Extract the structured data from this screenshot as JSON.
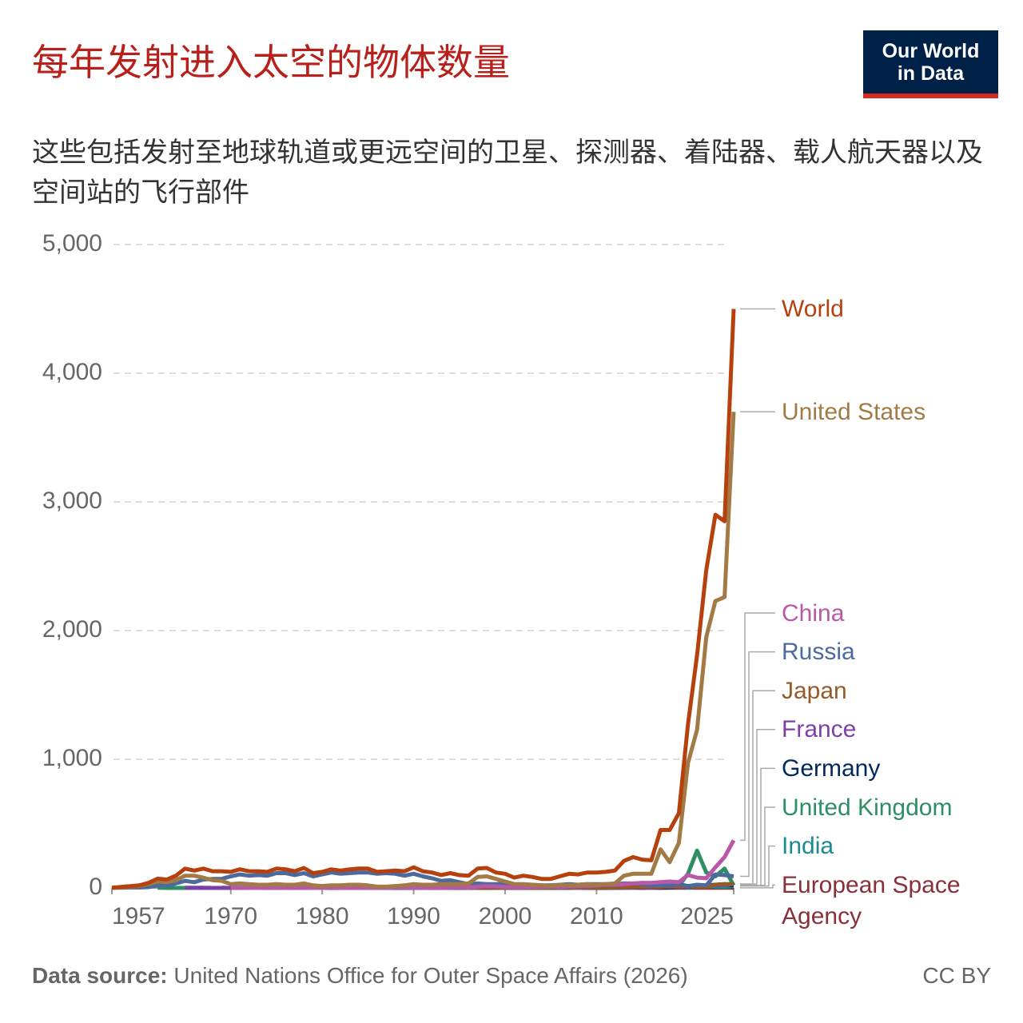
{
  "chart_data": {
    "type": "line",
    "title": "每年发射进入太空的物体数量",
    "subtitle": "这些包括发射至地球轨道或更远空间的卫星、探测器、着陆器、载人航天器以及空间站的飞行部件",
    "logo": "Our World in Data",
    "source_label": "Data source:",
    "source": "United Nations Office for Outer Space Affairs (2026)",
    "license": "CC BY",
    "x": [
      1957,
      1958,
      1959,
      1960,
      1961,
      1962,
      1963,
      1964,
      1965,
      1966,
      1967,
      1968,
      1969,
      1970,
      1971,
      1972,
      1973,
      1974,
      1975,
      1976,
      1977,
      1978,
      1979,
      1980,
      1981,
      1982,
      1983,
      1984,
      1985,
      1986,
      1987,
      1988,
      1989,
      1990,
      1991,
      1992,
      1993,
      1994,
      1995,
      1996,
      1997,
      1998,
      1999,
      2000,
      2001,
      2002,
      2003,
      2004,
      2005,
      2006,
      2007,
      2008,
      2009,
      2010,
      2011,
      2012,
      2013,
      2014,
      2015,
      2016,
      2017,
      2018,
      2019,
      2020,
      2021,
      2022,
      2023,
      2024,
      2025
    ],
    "xlim": [
      1957,
      2025
    ],
    "xticks": [
      1957,
      1970,
      1980,
      1990,
      2000,
      2010,
      2025
    ],
    "ylim": [
      0,
      5000
    ],
    "yticks": [
      0,
      {
        "value": 1000,
        "label": "1,000"
      },
      {
        "value": 2000,
        "label": "2,000"
      },
      {
        "value": 3000,
        "label": "3,000"
      },
      {
        "value": 4000,
        "label": "4,000"
      },
      {
        "value": 5000,
        "label": "5,000"
      }
    ],
    "grid": true,
    "series": [
      {
        "name": "World",
        "color": "#b7410e",
        "values": [
          2,
          8,
          14,
          20,
          40,
          72,
          65,
          95,
          150,
          135,
          150,
          130,
          130,
          125,
          145,
          130,
          130,
          125,
          150,
          145,
          130,
          155,
          115,
          125,
          145,
          135,
          145,
          150,
          150,
          125,
          130,
          135,
          130,
          160,
          130,
          120,
          100,
          115,
          100,
          95,
          150,
          155,
          120,
          110,
          80,
          95,
          85,
          70,
          70,
          90,
          110,
          105,
          120,
          120,
          125,
          135,
          210,
          240,
          220,
          215,
          450,
          450,
          580,
          1270,
          1810,
          2470,
          2900,
          2850,
          4500
        ]
      },
      {
        "name": "United States",
        "color": "#a17a46",
        "values": [
          0,
          5,
          10,
          15,
          30,
          50,
          45,
          60,
          95,
          95,
          80,
          60,
          55,
          30,
          35,
          30,
          25,
          25,
          30,
          25,
          25,
          35,
          20,
          15,
          20,
          20,
          25,
          25,
          20,
          10,
          10,
          15,
          20,
          30,
          25,
          25,
          30,
          30,
          30,
          35,
          85,
          90,
          70,
          50,
          30,
          30,
          25,
          20,
          15,
          25,
          20,
          25,
          30,
          25,
          30,
          35,
          95,
          110,
          110,
          110,
          300,
          200,
          350,
          970,
          1230,
          1950,
          2230,
          2260,
          3700
        ]
      },
      {
        "name": "China",
        "color": "#b957a8",
        "values": [
          null,
          null,
          null,
          null,
          null,
          null,
          null,
          null,
          null,
          null,
          null,
          null,
          null,
          1,
          1,
          0,
          0,
          1,
          3,
          0,
          1,
          1,
          0,
          0,
          3,
          1,
          1,
          2,
          2,
          1,
          2,
          3,
          4,
          3,
          2,
          3,
          1,
          2,
          5,
          3,
          10,
          15,
          12,
          8,
          4,
          5,
          8,
          8,
          10,
          8,
          12,
          15,
          15,
          20,
          25,
          25,
          30,
          35,
          40,
          40,
          45,
          50,
          45,
          100,
          80,
          75,
          160,
          240,
          370
        ]
      },
      {
        "name": "Russia",
        "color": "#4c6a9c",
        "values": [
          2,
          1,
          3,
          3,
          6,
          20,
          20,
          35,
          55,
          45,
          65,
          70,
          70,
          90,
          105,
          95,
          100,
          95,
          115,
          115,
          100,
          115,
          90,
          105,
          120,
          110,
          115,
          120,
          120,
          110,
          115,
          110,
          95,
          110,
          90,
          75,
          55,
          60,
          45,
          30,
          35,
          30,
          30,
          35,
          25,
          25,
          25,
          20,
          20,
          25,
          30,
          25,
          30,
          30,
          30,
          30,
          35,
          35,
          30,
          20,
          20,
          20,
          30,
          15,
          25,
          20,
          105,
          100,
          90
        ]
      },
      {
        "name": "Japan",
        "color": "#955a27",
        "values": [
          null,
          null,
          null,
          null,
          null,
          null,
          null,
          null,
          null,
          null,
          null,
          null,
          null,
          1,
          1,
          0,
          0,
          0,
          1,
          0,
          1,
          2,
          2,
          2,
          3,
          3,
          2,
          3,
          2,
          2,
          3,
          3,
          2,
          3,
          2,
          3,
          1,
          3,
          5,
          1,
          2,
          3,
          2,
          2,
          3,
          3,
          2,
          2,
          3,
          5,
          4,
          5,
          3,
          3,
          5,
          5,
          6,
          7,
          10,
          12,
          8,
          15,
          12,
          15,
          10,
          8,
          25,
          30,
          30
        ]
      },
      {
        "name": "France",
        "color": "#7d3ea8",
        "values": [
          null,
          null,
          null,
          null,
          null,
          null,
          null,
          null,
          1,
          1,
          0,
          0,
          0,
          0,
          0,
          0,
          0,
          0,
          0,
          0,
          0,
          0,
          0,
          1,
          1,
          0,
          0,
          0,
          0,
          1,
          0,
          1,
          1,
          2,
          0,
          1,
          1,
          1,
          2,
          1,
          2,
          1,
          2,
          1,
          2,
          1,
          2,
          2,
          2,
          3,
          2,
          2,
          3,
          4,
          3,
          4,
          3,
          4,
          5,
          4,
          8,
          10,
          6,
          10,
          15,
          20,
          20,
          25,
          30
        ]
      },
      {
        "name": "Germany",
        "color": "#00295b",
        "values": [
          null,
          null,
          null,
          null,
          null,
          null,
          null,
          null,
          null,
          null,
          null,
          null,
          1,
          0,
          0,
          0,
          0,
          1,
          1,
          0,
          0,
          0,
          0,
          0,
          0,
          0,
          0,
          0,
          0,
          0,
          0,
          0,
          0,
          2,
          1,
          0,
          0,
          0,
          1,
          1,
          1,
          0,
          1,
          2,
          1,
          1,
          1,
          0,
          1,
          1,
          2,
          4,
          2,
          1,
          1,
          1,
          2,
          3,
          3,
          3,
          4,
          5,
          6,
          10,
          15,
          20,
          25,
          30,
          20
        ]
      },
      {
        "name": "United Kingdom",
        "color": "#2d8e64",
        "values": [
          null,
          null,
          null,
          null,
          null,
          1,
          0,
          0,
          0,
          0,
          1,
          0,
          0,
          0,
          1,
          0,
          0,
          0,
          1,
          0,
          0,
          0,
          0,
          0,
          0,
          0,
          0,
          0,
          0,
          0,
          0,
          0,
          0,
          1,
          0,
          1,
          0,
          0,
          0,
          0,
          0,
          0,
          0,
          0,
          1,
          1,
          1,
          1,
          1,
          1,
          1,
          2,
          2,
          3,
          2,
          2,
          3,
          5,
          5,
          10,
          8,
          12,
          15,
          110,
          290,
          120,
          90,
          150,
          20
        ]
      },
      {
        "name": "India",
        "color": "#1b8a91",
        "values": [
          null,
          null,
          null,
          null,
          null,
          null,
          null,
          null,
          null,
          null,
          null,
          null,
          null,
          null,
          null,
          null,
          null,
          null,
          1,
          0,
          0,
          0,
          1,
          1,
          1,
          1,
          1,
          0,
          0,
          0,
          0,
          1,
          0,
          0,
          0,
          1,
          1,
          1,
          1,
          1,
          1,
          0,
          1,
          0,
          1,
          1,
          1,
          1,
          1,
          1,
          2,
          4,
          5,
          3,
          5,
          5,
          5,
          5,
          6,
          7,
          10,
          8,
          10,
          5,
          10,
          12,
          10,
          8,
          15
        ]
      },
      {
        "name": "European Space Agency",
        "color": "#883039",
        "values": [
          null,
          null,
          null,
          null,
          null,
          null,
          null,
          null,
          null,
          null,
          null,
          null,
          null,
          null,
          null,
          null,
          null,
          null,
          1,
          0,
          1,
          1,
          0,
          0,
          0,
          1,
          0,
          1,
          1,
          0,
          1,
          0,
          0,
          1,
          1,
          0,
          0,
          1,
          1,
          1,
          0,
          1,
          1,
          1,
          1,
          0,
          0,
          1,
          0,
          1,
          1,
          1,
          0,
          0,
          0,
          1,
          2,
          1,
          0,
          1,
          0,
          1,
          1,
          1,
          1,
          1,
          1,
          1,
          1
        ]
      }
    ]
  }
}
